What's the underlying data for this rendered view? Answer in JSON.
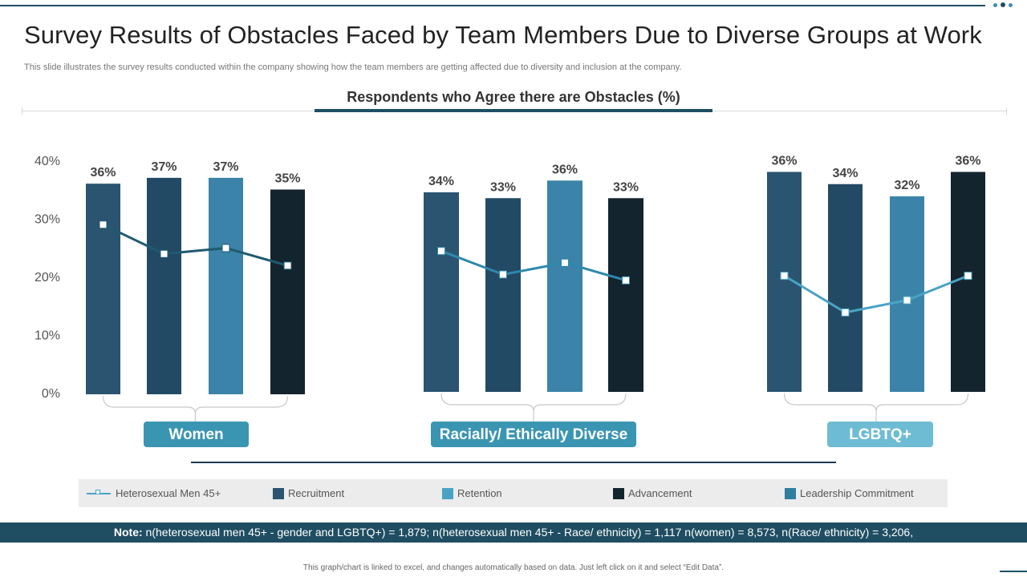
{
  "title": "Survey Results of Obstacles Faced by Team Members Due to Diverse Groups at Work",
  "subtitle": "This slide illustrates the survey results conducted within the company showing how the team members are getting affected due to  diversity and inclusion at the company.",
  "chart_data": {
    "type": "bar",
    "title": "Respondents who Agree there are Obstacles (%)",
    "ylim": [
      0,
      40
    ],
    "yticks": [
      "0%",
      "10%",
      "20%",
      "30%",
      "40%"
    ],
    "groups": [
      "Women",
      "Racially/ Ethically Diverse",
      "LGBTQ+"
    ],
    "series": [
      {
        "name": "Recruitment",
        "color": "#2a5470",
        "values": [
          36,
          34,
          36
        ],
        "labels": [
          "36%",
          "34%",
          "36%"
        ]
      },
      {
        "name": "Retention",
        "color": "#234a64",
        "values": [
          37,
          33,
          34
        ],
        "labels": [
          "37%",
          "33%",
          "34%"
        ]
      },
      {
        "name": "Leadership Commitment",
        "color": "#3b83a8",
        "values": [
          37,
          36,
          32
        ],
        "labels": [
          "37%",
          "36%",
          "32%"
        ]
      },
      {
        "name": "Advancement",
        "color": "#13242f",
        "values": [
          35,
          33,
          36
        ],
        "labels": [
          "35%",
          "33%",
          "36%"
        ]
      }
    ],
    "line_series": {
      "name": "Heterosexual  Men 45+",
      "values": [
        [
          29,
          24,
          25,
          22
        ],
        [
          24,
          20,
          22,
          19
        ],
        [
          19,
          13,
          15,
          19
        ]
      ],
      "colors": [
        "#1f5a70",
        "#2f88ad",
        "#4aa3c5"
      ]
    }
  },
  "legend": [
    {
      "label": "Heterosexual  Men 45+",
      "kind": "line",
      "color": "#4aa3c5"
    },
    {
      "label": "Recruitment",
      "kind": "box",
      "color": "#2a5470"
    },
    {
      "label": "Retention",
      "kind": "box",
      "color": "#4aa3c5"
    },
    {
      "label": "Advancement",
      "kind": "box",
      "color": "#13242f"
    },
    {
      "label": "Leadership  Commitment",
      "kind": "box",
      "color": "#2e7f9f"
    }
  ],
  "note": {
    "label": "Note:",
    "text": " n(heterosexual men 45+ - gender and LGBTQ+) = 1,879; n(heterosexual men 45+ - Race/ ethnicity) = 1,117 n(women) = 8,573, n(Race/ ethnicity) = 3,206,"
  },
  "footer": "This graph/chart is linked to excel, and changes automatically based on data. Just left click on it and select “Edit Data”."
}
